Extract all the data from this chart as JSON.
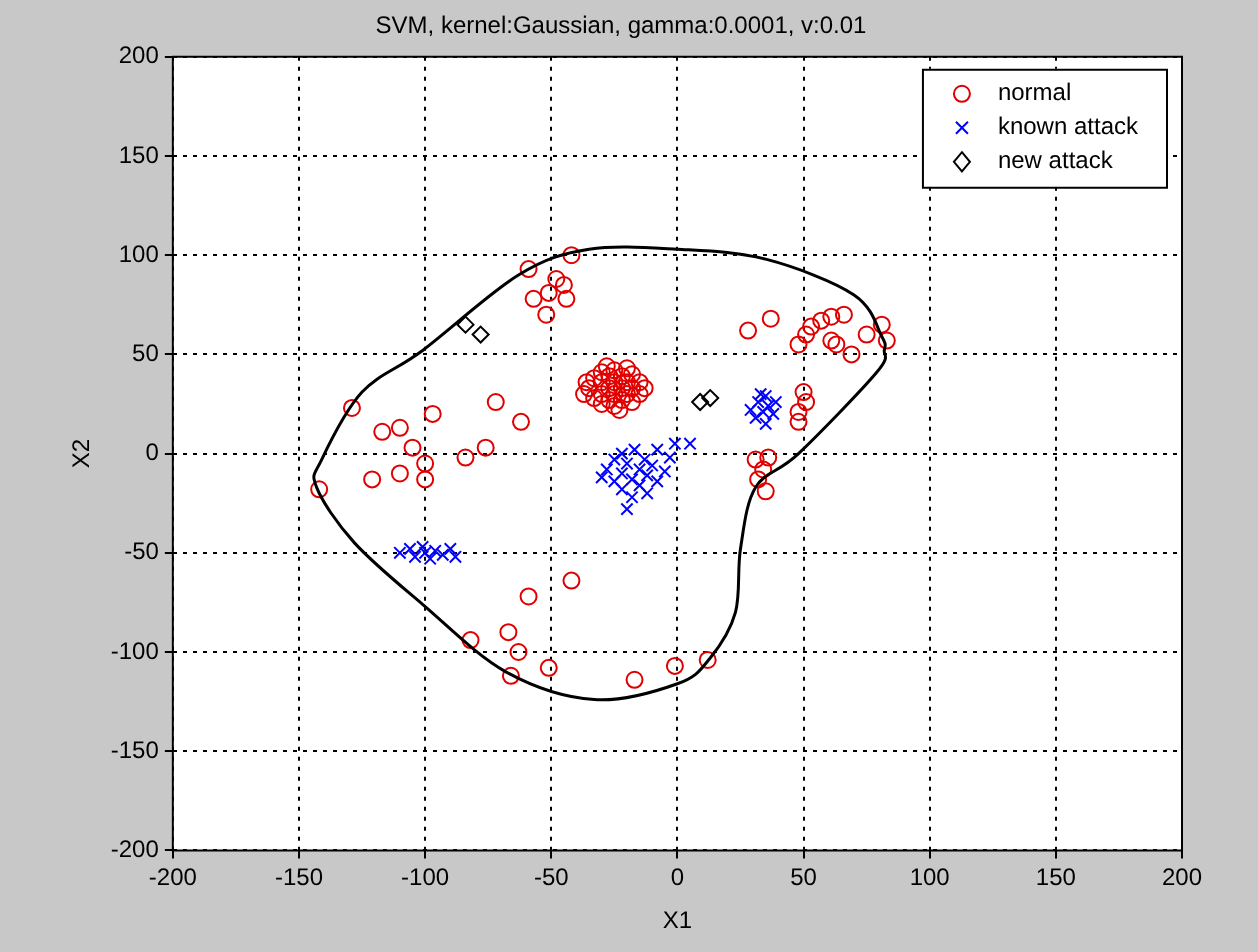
{
  "chart_data": {
    "type": "scatter",
    "title": "SVM, kernel:Gaussian, gamma:0.0001, v:0.01",
    "xlabel": "X1",
    "ylabel": "X2",
    "xlim": [
      -200,
      200
    ],
    "xticks": [
      -200,
      -150,
      -100,
      -50,
      0,
      50,
      100,
      150,
      200
    ],
    "ylim": [
      -200,
      200
    ],
    "yticks": [
      -200,
      -150,
      -100,
      -50,
      0,
      50,
      100,
      150,
      200
    ],
    "grid": true,
    "legend": "top right",
    "series": [
      {
        "name": "normal",
        "type": "scatter",
        "marker": "circle",
        "color": "#e00000",
        "x": [
          -35,
          -33,
          -33,
          -30,
          -30,
          -30,
          -30,
          -27,
          -27,
          -27,
          -25,
          -25,
          -25,
          -25,
          -22,
          -22,
          -22,
          -20,
          -20,
          -18,
          -18,
          -18,
          -15,
          -15,
          -13,
          -37,
          -36,
          -28,
          -20,
          -23,
          -42,
          -59,
          -48,
          -45,
          -51,
          -57,
          -44,
          -52,
          -72,
          -62,
          -97,
          -129,
          -117,
          -110,
          -105,
          -100,
          -100,
          -110,
          -121,
          -142,
          -84,
          -76,
          -42,
          -59,
          -82,
          -67,
          -63,
          -66,
          -51,
          -17,
          -1,
          12,
          28,
          37,
          48,
          53,
          57,
          61,
          66,
          51,
          61,
          63,
          69,
          75,
          81,
          83,
          50,
          51,
          48,
          48,
          31,
          34,
          36,
          32,
          35
        ],
        "values": [
          33,
          28,
          38,
          25,
          30,
          36,
          41,
          27,
          33,
          39,
          24,
          30,
          36,
          42,
          27,
          33,
          39,
          30,
          36,
          26,
          33,
          40,
          30,
          36,
          33,
          30,
          36,
          44,
          43,
          22,
          100,
          93,
          88,
          85,
          81,
          78,
          78,
          70,
          26,
          16,
          20,
          23,
          11,
          13,
          3,
          -5,
          -13,
          -10,
          -13,
          -18,
          -2,
          3,
          -64,
          -72,
          -94,
          -90,
          -100,
          -112,
          -108,
          -114,
          -107,
          -104,
          62,
          68,
          55,
          64,
          67,
          69,
          70,
          60,
          57,
          55,
          50,
          60,
          65,
          57,
          31,
          26,
          21,
          16,
          -3,
          -8,
          -2,
          -13,
          -19
        ]
      },
      {
        "name": "known attack",
        "type": "scatter",
        "marker": "cross",
        "color": "#0000ff",
        "x": [
          -28,
          -25,
          -25,
          -22,
          -22,
          -22,
          -20,
          -18,
          -18,
          -17,
          -15,
          -15,
          -13,
          -12,
          -12,
          -10,
          -8,
          -8,
          -5,
          -3,
          -20,
          -30,
          -1,
          5,
          -110,
          -106,
          -104,
          -101,
          -100,
          -98,
          -96,
          -93,
          -90,
          -88,
          29,
          31,
          32,
          34,
          35,
          35,
          36,
          38,
          39,
          33
        ],
        "values": [
          -8,
          -14,
          -3,
          -18,
          -10,
          0,
          -5,
          -13,
          -22,
          2,
          -8,
          -16,
          -3,
          -11,
          -20,
          -6,
          -14,
          2,
          -9,
          -2,
          -28,
          -12,
          5,
          5,
          -50,
          -48,
          -52,
          -47,
          -50,
          -53,
          -49,
          -51,
          -48,
          -52,
          22,
          18,
          26,
          21,
          15,
          29,
          24,
          20,
          26,
          30
        ]
      },
      {
        "name": "new attack",
        "type": "scatter",
        "marker": "diamond",
        "color": "#000000",
        "x": [
          -84,
          -78,
          9,
          13
        ],
        "values": [
          65,
          60,
          26,
          28
        ]
      }
    ]
  }
}
